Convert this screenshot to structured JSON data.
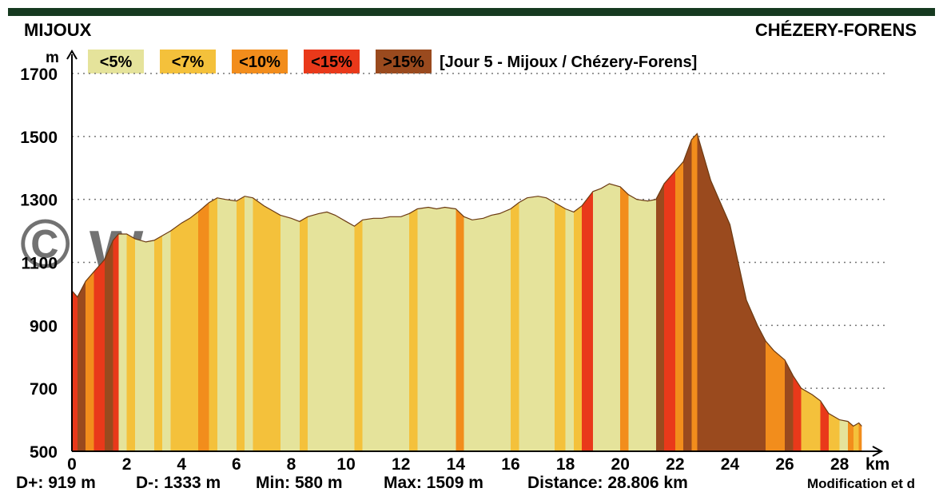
{
  "header": {
    "start_place": "MIJOUX",
    "end_place": "CHÉZERY-FORENS",
    "stage_label": "[Jour 5 - Mijoux / Chézery-Forens]",
    "watermark": "© w... r.com"
  },
  "legend": [
    {
      "label": "<5%",
      "color": "#e5e39b"
    },
    {
      "label": "<7%",
      "color": "#f4c13b"
    },
    {
      "label": "<10%",
      "color": "#f28d1c"
    },
    {
      "label": "<15%",
      "color": "#e9391a"
    },
    {
      "label": ">15%",
      "color": "#9a4a1e"
    }
  ],
  "stats": {
    "dplus": "D+: 919 m",
    "dminus": "D-: 1333 m",
    "min": "Min: 580 m",
    "max": "Max: 1509 m",
    "distance": "Distance: 28.806 km",
    "footer_note": "Modification et d"
  },
  "chart_data": {
    "type": "area",
    "title": "[Jour 5 - Mijoux / Chézery-Forens]",
    "xlabel": "km",
    "ylabel": "m",
    "xlim": [
      0,
      29
    ],
    "ylim": [
      500,
      1700
    ],
    "x_ticks": [
      0,
      2,
      4,
      6,
      8,
      10,
      12,
      14,
      16,
      18,
      20,
      22,
      24,
      26,
      28
    ],
    "y_ticks": [
      500,
      700,
      900,
      1100,
      1300,
      1500,
      1700
    ],
    "grid": "dotted-horizontal",
    "x": [
      0,
      0.2,
      0.5,
      0.8,
      1.2,
      1.5,
      1.7,
      2.0,
      2.3,
      2.7,
      3.0,
      3.3,
      3.6,
      4.0,
      4.3,
      4.6,
      5.0,
      5.3,
      5.6,
      6.0,
      6.3,
      6.6,
      7.0,
      7.3,
      7.6,
      8.0,
      8.3,
      8.6,
      9.0,
      9.3,
      9.6,
      10.0,
      10.3,
      10.6,
      11.0,
      11.3,
      11.6,
      12.0,
      12.3,
      12.6,
      13.0,
      13.3,
      13.6,
      14.0,
      14.3,
      14.6,
      15.0,
      15.3,
      15.6,
      16.0,
      16.3,
      16.6,
      17.0,
      17.3,
      17.6,
      18.0,
      18.3,
      18.6,
      19.0,
      19.3,
      19.6,
      20.0,
      20.3,
      20.6,
      21.0,
      21.3,
      21.6,
      22.0,
      22.3,
      22.6,
      22.8,
      23.0,
      23.3,
      23.6,
      24.0,
      24.3,
      24.6,
      25.0,
      25.3,
      25.6,
      26.0,
      26.3,
      26.6,
      27.0,
      27.3,
      27.6,
      28.0,
      28.3,
      28.5,
      28.7,
      28.806
    ],
    "elevation": [
      1010,
      990,
      1040,
      1070,
      1110,
      1170,
      1190,
      1190,
      1175,
      1165,
      1170,
      1185,
      1200,
      1225,
      1240,
      1260,
      1290,
      1305,
      1300,
      1295,
      1310,
      1305,
      1280,
      1265,
      1250,
      1240,
      1230,
      1245,
      1255,
      1260,
      1250,
      1230,
      1215,
      1235,
      1240,
      1240,
      1245,
      1245,
      1255,
      1270,
      1275,
      1270,
      1275,
      1270,
      1245,
      1235,
      1240,
      1250,
      1255,
      1270,
      1290,
      1305,
      1310,
      1305,
      1290,
      1270,
      1260,
      1280,
      1325,
      1335,
      1350,
      1340,
      1315,
      1300,
      1295,
      1300,
      1350,
      1390,
      1420,
      1490,
      1509,
      1450,
      1360,
      1300,
      1220,
      1100,
      980,
      900,
      850,
      820,
      790,
      740,
      700,
      680,
      660,
      620,
      600,
      595,
      580,
      590,
      580
    ],
    "gradient_classes": [
      "<5%",
      "<7%",
      "<10%",
      "<15%",
      ">15%"
    ],
    "gradient_colors": [
      "#e5e39b",
      "#f4c13b",
      "#f28d1c",
      "#e9391a",
      "#9a4a1e"
    ]
  }
}
